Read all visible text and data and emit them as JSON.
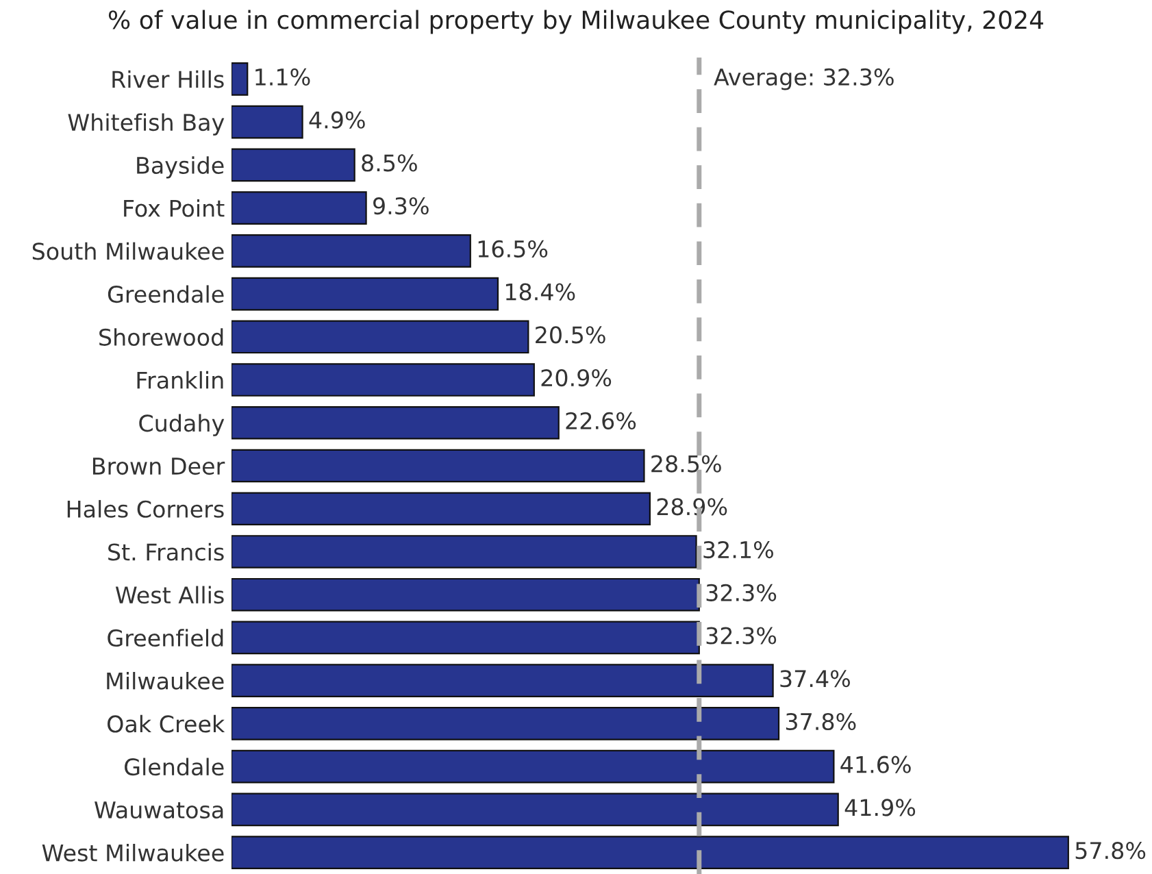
{
  "chart_data": {
    "type": "bar",
    "orientation": "horizontal",
    "title": "% of value in commercial property by Milwaukee County municipality, 2024",
    "categories": [
      "River Hills",
      "Whitefish Bay",
      "Bayside",
      "Fox Point",
      "South Milwaukee",
      "Greendale",
      "Shorewood",
      "Franklin",
      "Cudahy",
      "Brown Deer",
      "Hales Corners",
      "St. Francis",
      "West Allis",
      "Greenfield",
      "Milwaukee",
      "Oak Creek",
      "Glendale",
      "Wauwatosa",
      "West Milwaukee"
    ],
    "values": [
      1.1,
      4.9,
      8.5,
      9.3,
      16.5,
      18.4,
      20.5,
      20.9,
      22.6,
      28.5,
      28.9,
      32.1,
      32.3,
      32.3,
      37.4,
      37.8,
      41.6,
      41.9,
      57.8
    ],
    "value_labels": [
      "1.1%",
      "4.9%",
      "8.5%",
      "9.3%",
      "16.5%",
      "18.4%",
      "20.5%",
      "20.9%",
      "22.6%",
      "28.5%",
      "28.9%",
      "32.1%",
      "32.3%",
      "32.3%",
      "37.4%",
      "37.8%",
      "41.6%",
      "41.9%",
      "57.8%"
    ],
    "color": "#27358f",
    "tick_labels": "y",
    "grid": false,
    "ref_lines": [
      {
        "axis": "x",
        "value": 32.3,
        "label": "Average: 32.3%",
        "color": "#aaaaaa",
        "line_style": "dashed"
      }
    ]
  }
}
